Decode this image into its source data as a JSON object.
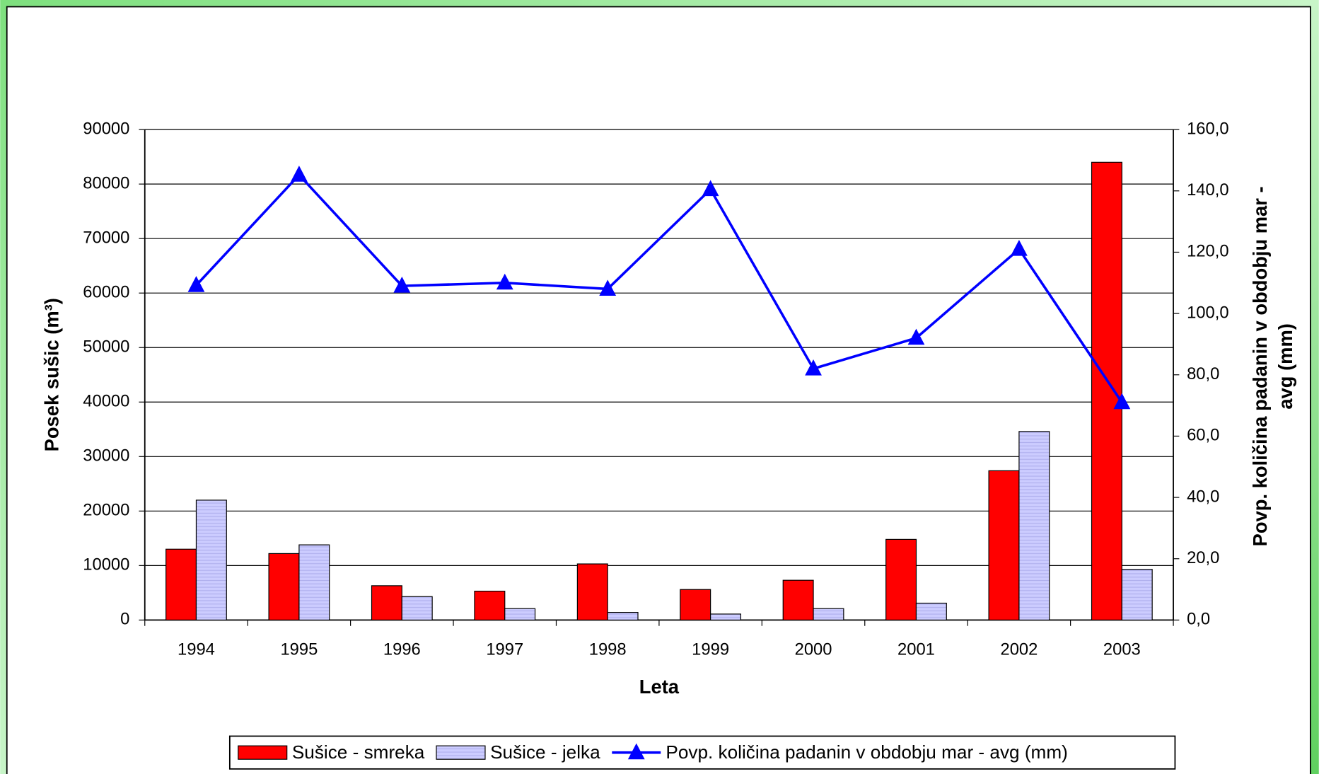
{
  "chart_data": {
    "type": "bar_line",
    "x_label": "Leta",
    "y_label": "Posek sušic (m³)",
    "y2_label_lines": [
      "Povp. količina padanin v obdobju mar -",
      "avg (mm)"
    ],
    "categories": [
      "1994",
      "1995",
      "1996",
      "1997",
      "1998",
      "1999",
      "2000",
      "2001",
      "2002",
      "2003"
    ],
    "series": [
      {
        "name": "Sušice - smreka",
        "type": "bar",
        "color": "#ff0000",
        "values": [
          13000,
          12200,
          6300,
          5300,
          10300,
          5600,
          7300,
          14800,
          27400,
          84000
        ]
      },
      {
        "name": "Sušice - jelka",
        "type": "bar",
        "color": "#ccccff",
        "values": [
          22000,
          13800,
          4300,
          2100,
          1400,
          1100,
          2100,
          3100,
          34600,
          9300
        ]
      },
      {
        "name": "Povp. količina padanin v obdobju mar - avg (mm)",
        "type": "line",
        "axis": "y2",
        "color": "#0000ff",
        "values": [
          109.2,
          145.2,
          109,
          110,
          108,
          140.5,
          82,
          92,
          121,
          71
        ]
      }
    ],
    "ylim": [
      0,
      90000
    ],
    "yticks": [
      0,
      10000,
      20000,
      30000,
      40000,
      50000,
      60000,
      70000,
      80000,
      90000
    ],
    "y2lim": [
      0,
      160
    ],
    "y2ticks": [
      {
        "value": 0,
        "label": "0,0"
      },
      {
        "value": 20,
        "label": "20,0"
      },
      {
        "value": 40,
        "label": "40,0"
      },
      {
        "value": 60,
        "label": "60,0"
      },
      {
        "value": 80,
        "label": "80,0"
      },
      {
        "value": 100,
        "label": "100,0"
      },
      {
        "value": 120,
        "label": "120,0"
      },
      {
        "value": 140,
        "label": "140,0"
      },
      {
        "value": 160,
        "label": "160,0"
      }
    ],
    "grid": true,
    "legend": "bottom"
  }
}
